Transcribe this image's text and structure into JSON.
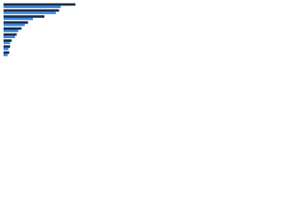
{
  "chart_data": {
    "type": "bar",
    "orientation": "horizontal",
    "categories": [
      null,
      null,
      null,
      null,
      null,
      null,
      null,
      null,
      null
    ],
    "series": [
      {
        "color": "#1b2a47",
        "values": [
          88,
          68,
          50,
          30,
          22,
          16,
          10,
          8,
          7
        ]
      },
      {
        "color": "#3a86e0",
        "values": [
          70,
          64,
          36,
          26,
          18,
          14,
          8,
          6,
          5
        ]
      }
    ],
    "xlim": [
      0,
      100
    ]
  }
}
